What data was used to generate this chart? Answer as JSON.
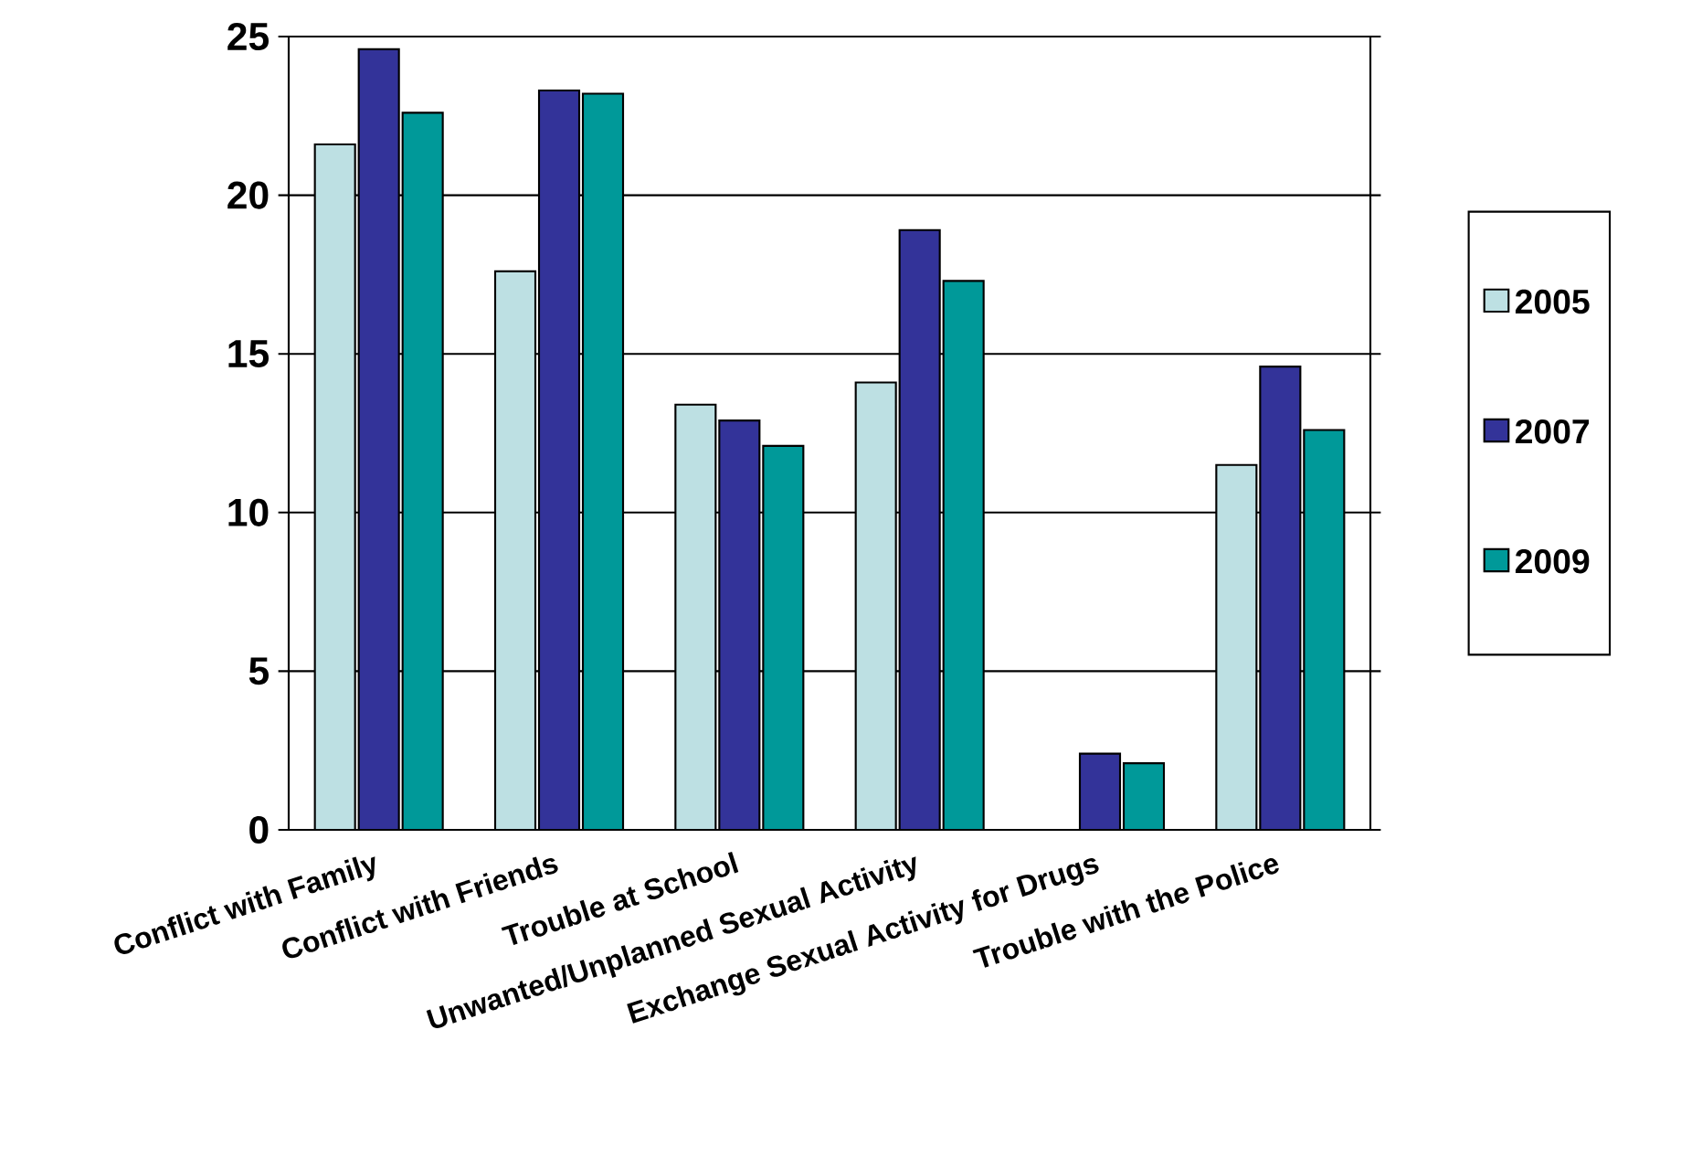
{
  "chart_data": {
    "type": "bar",
    "categories": [
      "Conflict with Family",
      "Conflict with Friends",
      "Trouble at School",
      "Unwanted/Unplanned Sexual Activity",
      "Exchange Sexual Activity for Drugs",
      "Trouble with the Police"
    ],
    "series": [
      {
        "name": "2005",
        "color": "#bde0e3",
        "values": [
          21.6,
          17.6,
          13.4,
          14.1,
          null,
          11.5
        ]
      },
      {
        "name": "2007",
        "color": "#333399",
        "values": [
          24.6,
          23.3,
          12.9,
          18.9,
          2.4,
          14.6
        ]
      },
      {
        "name": "2009",
        "color": "#009999",
        "values": [
          22.6,
          23.2,
          12.1,
          17.3,
          2.1,
          12.6
        ]
      }
    ],
    "ylim": [
      0,
      25
    ],
    "yticks": [
      0,
      5,
      10,
      15,
      20,
      25
    ],
    "grid": "y",
    "legend": "right"
  }
}
